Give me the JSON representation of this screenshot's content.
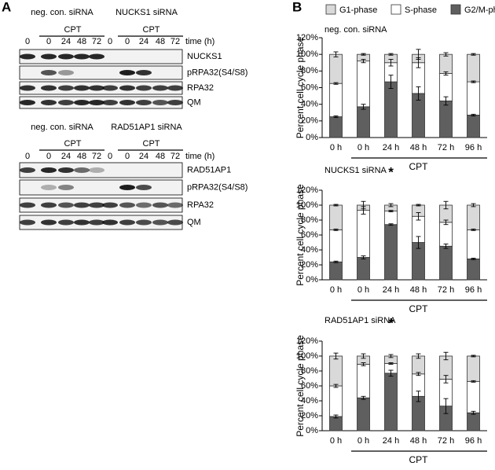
{
  "panel_labels": {
    "a": "A",
    "b": "B"
  },
  "panel_a": {
    "blots": [
      {
        "groups": [
          {
            "name": "neg. con. siRNA",
            "treatment": "CPT",
            "times": [
              "0",
              "0",
              "24",
              "48",
              "72"
            ]
          },
          {
            "name": "NUCKS1 siRNA",
            "treatment": "CPT",
            "times": [
              "0",
              "0",
              "24",
              "48",
              "72"
            ]
          }
        ],
        "time_label": "time (h)",
        "rows": [
          "NUCKS1",
          "pRPA32(S4/S8)",
          "RPA32",
          "QM"
        ]
      },
      {
        "groups": [
          {
            "name": "neg. con. siRNA",
            "treatment": "CPT",
            "times": [
              "0",
              "0",
              "24",
              "48",
              "72"
            ]
          },
          {
            "name": "RAD51AP1 siRNA",
            "treatment": "CPT",
            "times": [
              "0",
              "0",
              "24",
              "48",
              "72"
            ]
          }
        ],
        "time_label": "time (h)",
        "rows": [
          "RAD51AP1",
          "pRPA32(S4/S8)",
          "RPA32",
          "QM"
        ]
      }
    ]
  },
  "chart_data": [
    {
      "type": "bar",
      "stacked": true,
      "title": "neg. con. siRNA",
      "y_label": "Percent cell cycle phase",
      "group_label": "CPT",
      "categories": [
        "0 h",
        "0 h",
        "24 h",
        "48 h",
        "72 h",
        "96 h"
      ],
      "series": [
        {
          "name": "G1-phase",
          "color": "#d9d9d9",
          "values": [
            35,
            8,
            10,
            10,
            23,
            33
          ],
          "errors": [
            3,
            1,
            1,
            6,
            2,
            1
          ]
        },
        {
          "name": "S-phase",
          "color": "#ffffff",
          "values": [
            40,
            55,
            23,
            37,
            33,
            40
          ],
          "errors": [
            1,
            2,
            4,
            6,
            2,
            1
          ]
        },
        {
          "name": "G2/M-phase",
          "color": "#5f5f5f",
          "values": [
            25,
            37,
            67,
            53,
            44,
            27
          ],
          "errors": [
            1,
            3,
            8,
            8,
            5,
            1
          ]
        }
      ],
      "ylim": [
        0,
        120
      ],
      "yticks": [
        {
          "value": 0,
          "label": "0%"
        },
        {
          "value": 20,
          "label": "20%"
        },
        {
          "value": 40,
          "label": "40%"
        },
        {
          "value": 60,
          "label": "60%"
        },
        {
          "value": 80,
          "label": "80%"
        },
        {
          "value": 100,
          "label": "100%"
        },
        {
          "value": 120,
          "label": "120%"
        }
      ]
    },
    {
      "type": "bar",
      "stacked": true,
      "title": "NUCKS1 siRNA",
      "y_label": "Percent cell cycle phase",
      "group_label": "CPT",
      "annotation": "*",
      "categories": [
        "0 h",
        "0 h",
        "24 h",
        "48 h",
        "72 h",
        "96 h"
      ],
      "series": [
        {
          "color": "#d9d9d9",
          "values": [
            33,
            7,
            8,
            15,
            23,
            33
          ],
          "errors": [
            1,
            5,
            2,
            1,
            5,
            2
          ]
        },
        {
          "color": "#ffffff",
          "values": [
            43,
            63,
            18,
            35,
            32,
            39
          ],
          "errors": [
            1,
            5,
            1,
            5,
            3,
            1
          ]
        },
        {
          "color": "#5f5f5f",
          "values": [
            24,
            30,
            74,
            50,
            45,
            28
          ],
          "errors": [
            1,
            2,
            1,
            8,
            3,
            1
          ]
        }
      ],
      "ylim": [
        0,
        120
      ],
      "yticks": [
        {
          "value": 0,
          "label": "0%"
        },
        {
          "value": 20,
          "label": "20%"
        },
        {
          "value": 40,
          "label": "40%"
        },
        {
          "value": 60,
          "label": "60%"
        },
        {
          "value": 80,
          "label": "80%"
        },
        {
          "value": 100,
          "label": "100%"
        },
        {
          "value": 120,
          "label": "120%"
        }
      ]
    },
    {
      "type": "bar",
      "stacked": true,
      "title": "RAD51AP1 siRNA",
      "y_label": "Percent cell cycle phase",
      "group_label": "CPT",
      "annotation": "*",
      "categories": [
        "0 h",
        "0 h",
        "24 h",
        "48 h",
        "72 h",
        "96 h"
      ],
      "series": [
        {
          "color": "#d9d9d9",
          "values": [
            40,
            11,
            10,
            24,
            31,
            34
          ],
          "errors": [
            4,
            3,
            2,
            3,
            5,
            1
          ]
        },
        {
          "color": "#ffffff",
          "values": [
            41,
            45,
            13,
            30,
            36,
            42
          ],
          "errors": [
            2,
            2,
            1,
            2,
            5,
            1
          ]
        },
        {
          "color": "#5f5f5f",
          "values": [
            19,
            44,
            77,
            46,
            33,
            24
          ],
          "errors": [
            2,
            2,
            4,
            7,
            10,
            2
          ]
        }
      ],
      "ylim": [
        0,
        120
      ],
      "yticks": [
        {
          "value": 0,
          "label": "0%"
        },
        {
          "value": 20,
          "label": "20%"
        },
        {
          "value": 40,
          "label": "40%"
        },
        {
          "value": 60,
          "label": "60%"
        },
        {
          "value": 80,
          "label": "80%"
        },
        {
          "value": 100,
          "label": "100%"
        },
        {
          "value": 120,
          "label": "120%"
        }
      ]
    }
  ]
}
